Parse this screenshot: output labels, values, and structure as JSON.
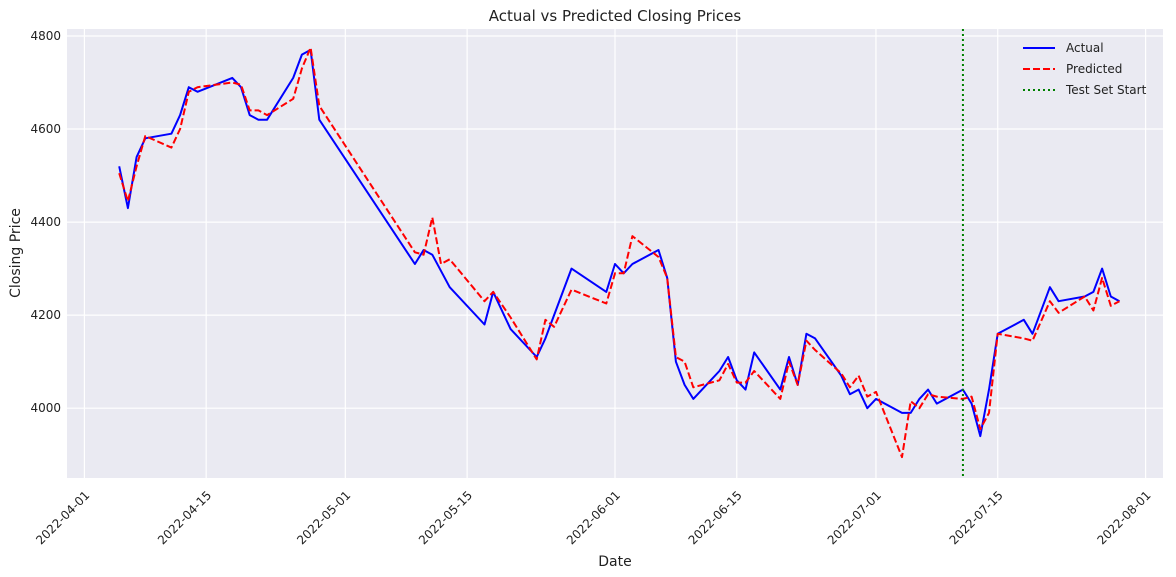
{
  "chart_data": {
    "type": "line",
    "title": "Actual vs Predicted Closing Prices",
    "xlabel": "Date",
    "ylabel": "Closing Price",
    "xlim": [
      "2022-03-30",
      "2022-08-03"
    ],
    "ylim": [
      3850,
      4815
    ],
    "x_ticks": [
      "2022-04-01",
      "2022-04-15",
      "2022-05-01",
      "2022-05-15",
      "2022-06-01",
      "2022-06-15",
      "2022-07-01",
      "2022-07-15",
      "2022-08-01"
    ],
    "y_ticks": [
      4000,
      4200,
      4400,
      4600,
      4800
    ],
    "grid": true,
    "legend_position": "top-right",
    "colors": {
      "actual": "#0000ff",
      "predicted": "#ff0000",
      "test_start": "#008000",
      "plot_bg": "#eaeaf2",
      "grid": "#ffffff"
    },
    "series": [
      {
        "name": "Actual",
        "style": "solid",
        "points": [
          [
            "2022-04-05",
            4520
          ],
          [
            "2022-04-06",
            4430
          ],
          [
            "2022-04-07",
            4540
          ],
          [
            "2022-04-08",
            4580
          ],
          [
            "2022-04-11",
            4590
          ],
          [
            "2022-04-12",
            4630
          ],
          [
            "2022-04-13",
            4690
          ],
          [
            "2022-04-14",
            4680
          ],
          [
            "2022-04-18",
            4710
          ],
          [
            "2022-04-19",
            4690
          ],
          [
            "2022-04-20",
            4630
          ],
          [
            "2022-04-21",
            4620
          ],
          [
            "2022-04-22",
            4620
          ],
          [
            "2022-04-25",
            4710
          ],
          [
            "2022-04-26",
            4760
          ],
          [
            "2022-04-27",
            4770
          ],
          [
            "2022-04-28",
            4620
          ],
          [
            "2022-05-09",
            4310
          ],
          [
            "2022-05-10",
            4340
          ],
          [
            "2022-05-11",
            4330
          ],
          [
            "2022-05-13",
            4260
          ],
          [
            "2022-05-17",
            4180
          ],
          [
            "2022-05-18",
            4250
          ],
          [
            "2022-05-20",
            4170
          ],
          [
            "2022-05-23",
            4110
          ],
          [
            "2022-05-24",
            4150
          ],
          [
            "2022-05-27",
            4300
          ],
          [
            "2022-05-31",
            4250
          ],
          [
            "2022-06-01",
            4310
          ],
          [
            "2022-06-02",
            4290
          ],
          [
            "2022-06-03",
            4310
          ],
          [
            "2022-06-06",
            4340
          ],
          [
            "2022-06-07",
            4280
          ],
          [
            "2022-06-08",
            4100
          ],
          [
            "2022-06-09",
            4050
          ],
          [
            "2022-06-10",
            4020
          ],
          [
            "2022-06-13",
            4080
          ],
          [
            "2022-06-14",
            4110
          ],
          [
            "2022-06-15",
            4060
          ],
          [
            "2022-06-16",
            4040
          ],
          [
            "2022-06-17",
            4120
          ],
          [
            "2022-06-20",
            4040
          ],
          [
            "2022-06-21",
            4110
          ],
          [
            "2022-06-22",
            4050
          ],
          [
            "2022-06-23",
            4160
          ],
          [
            "2022-06-24",
            4150
          ],
          [
            "2022-06-27",
            4070
          ],
          [
            "2022-06-28",
            4030
          ],
          [
            "2022-06-29",
            4040
          ],
          [
            "2022-06-30",
            4000
          ],
          [
            "2022-07-01",
            4020
          ],
          [
            "2022-07-04",
            3990
          ],
          [
            "2022-07-05",
            3990
          ],
          [
            "2022-07-06",
            4020
          ],
          [
            "2022-07-07",
            4040
          ],
          [
            "2022-07-08",
            4010
          ],
          [
            "2022-07-11",
            4040
          ],
          [
            "2022-07-12",
            4010
          ],
          [
            "2022-07-13",
            3940
          ],
          [
            "2022-07-14",
            4040
          ],
          [
            "2022-07-15",
            4160
          ],
          [
            "2022-07-18",
            4190
          ],
          [
            "2022-07-19",
            4160
          ],
          [
            "2022-07-21",
            4260
          ],
          [
            "2022-07-22",
            4230
          ],
          [
            "2022-07-25",
            4240
          ],
          [
            "2022-07-26",
            4250
          ],
          [
            "2022-07-27",
            4300
          ],
          [
            "2022-07-28",
            4240
          ],
          [
            "2022-07-29",
            4230
          ]
        ]
      },
      {
        "name": "Predicted",
        "style": "dashed",
        "points": [
          [
            "2022-04-05",
            4505
          ],
          [
            "2022-04-06",
            4445
          ],
          [
            "2022-04-07",
            4520
          ],
          [
            "2022-04-08",
            4585
          ],
          [
            "2022-04-11",
            4560
          ],
          [
            "2022-04-12",
            4600
          ],
          [
            "2022-04-13",
            4680
          ],
          [
            "2022-04-14",
            4690
          ],
          [
            "2022-04-18",
            4700
          ],
          [
            "2022-04-19",
            4695
          ],
          [
            "2022-04-20",
            4640
          ],
          [
            "2022-04-21",
            4640
          ],
          [
            "2022-04-22",
            4630
          ],
          [
            "2022-04-25",
            4665
          ],
          [
            "2022-04-26",
            4730
          ],
          [
            "2022-04-27",
            4775
          ],
          [
            "2022-04-28",
            4650
          ],
          [
            "2022-05-09",
            4335
          ],
          [
            "2022-05-10",
            4330
          ],
          [
            "2022-05-11",
            4410
          ],
          [
            "2022-05-12",
            4310
          ],
          [
            "2022-05-13",
            4320
          ],
          [
            "2022-05-17",
            4230
          ],
          [
            "2022-05-18",
            4250
          ],
          [
            "2022-05-20",
            4195
          ],
          [
            "2022-05-23",
            4105
          ],
          [
            "2022-05-24",
            4190
          ],
          [
            "2022-05-25",
            4175
          ],
          [
            "2022-05-27",
            4255
          ],
          [
            "2022-05-31",
            4225
          ],
          [
            "2022-06-01",
            4290
          ],
          [
            "2022-06-02",
            4290
          ],
          [
            "2022-06-03",
            4370
          ],
          [
            "2022-06-06",
            4325
          ],
          [
            "2022-06-07",
            4280
          ],
          [
            "2022-06-08",
            4110
          ],
          [
            "2022-06-09",
            4100
          ],
          [
            "2022-06-10",
            4045
          ],
          [
            "2022-06-13",
            4060
          ],
          [
            "2022-06-14",
            4095
          ],
          [
            "2022-06-15",
            4055
          ],
          [
            "2022-06-16",
            4055
          ],
          [
            "2022-06-17",
            4080
          ],
          [
            "2022-06-20",
            4020
          ],
          [
            "2022-06-21",
            4100
          ],
          [
            "2022-06-22",
            4050
          ],
          [
            "2022-06-23",
            4145
          ],
          [
            "2022-06-24",
            4125
          ],
          [
            "2022-06-27",
            4075
          ],
          [
            "2022-06-28",
            4045
          ],
          [
            "2022-06-29",
            4070
          ],
          [
            "2022-06-30",
            4025
          ],
          [
            "2022-07-01",
            4035
          ],
          [
            "2022-07-04",
            3895
          ],
          [
            "2022-07-05",
            4015
          ],
          [
            "2022-07-06",
            4000
          ],
          [
            "2022-07-07",
            4030
          ],
          [
            "2022-07-08",
            4025
          ],
          [
            "2022-07-11",
            4020
          ],
          [
            "2022-07-12",
            4025
          ],
          [
            "2022-07-13",
            3955
          ],
          [
            "2022-07-14",
            3990
          ],
          [
            "2022-07-15",
            4160
          ],
          [
            "2022-07-18",
            4150
          ],
          [
            "2022-07-19",
            4145
          ],
          [
            "2022-07-21",
            4230
          ],
          [
            "2022-07-22",
            4205
          ],
          [
            "2022-07-25",
            4240
          ],
          [
            "2022-07-26",
            4210
          ],
          [
            "2022-07-27",
            4280
          ],
          [
            "2022-07-28",
            4220
          ],
          [
            "2022-07-29",
            4230
          ]
        ]
      }
    ],
    "vline": {
      "name": "Test Set Start",
      "x": "2022-07-11",
      "style": "dotted"
    }
  }
}
